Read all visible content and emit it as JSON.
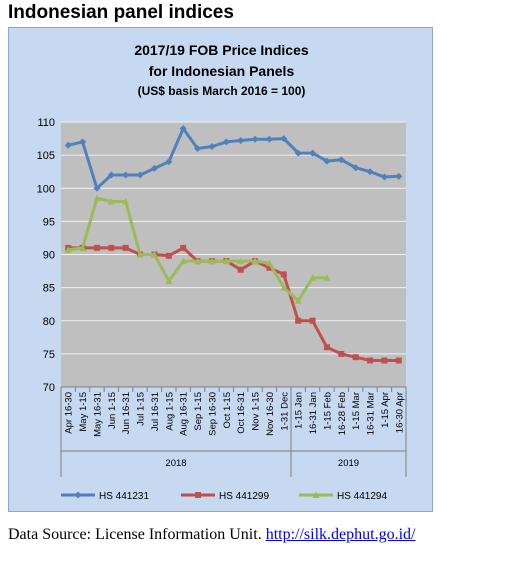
{
  "heading": "Indonesian panel indices",
  "footer": {
    "label": "Data Source: License Information Unit.",
    "link": "http://silk.dephut.go.id/"
  },
  "chart_data": {
    "type": "line",
    "title": "2017/19 FOB Price Indices",
    "subtitle": "for Indonesian Panels",
    "subtitle2": "(US$ basis March 2016 = 100)",
    "x": [
      "Apr 16-30",
      "May 1-15",
      "May 16-31",
      "Jun 1-15",
      "Jun 16-31",
      "Jul 1-15",
      "Jul 16-31",
      "Aug 1-15",
      "Aug 16-31",
      "Sep 1-15",
      "Sep 16-30",
      "Oct 1-15",
      "Oct 16-31",
      "Nov 1-15",
      "Nov 16-30",
      "1-31 Dec",
      "1-15 Jan",
      "16-31 Jan",
      "1-15 Feb",
      "16-28 Feb",
      "1-15 Mar",
      "16-31 Mar",
      "1-15 Apr",
      "16-30 Apr"
    ],
    "year_groups": [
      {
        "label": "2018",
        "start": 0,
        "end": 15
      },
      {
        "label": "2019",
        "start": 16,
        "end": 23
      }
    ],
    "ylim": [
      70,
      110
    ],
    "yticks": [
      70,
      75,
      80,
      85,
      90,
      95,
      100,
      105,
      110
    ],
    "grid": true,
    "legend": "bottom",
    "series": [
      {
        "name": "HS 441231",
        "color": "#4f81bd",
        "values": [
          106.5,
          107,
          100,
          102,
          102,
          102,
          103,
          104,
          109,
          106,
          106.3,
          107,
          107.2,
          107.4,
          107.4,
          107.5,
          105.3,
          105.3,
          104.1,
          104.3,
          103.1,
          102.5,
          101.7,
          101.8
        ]
      },
      {
        "name": "HS 441299",
        "color": "#c0504d",
        "values": [
          91,
          91,
          91,
          91,
          91,
          90,
          90,
          89.8,
          91,
          89,
          89,
          89,
          87.7,
          89,
          88,
          87,
          80,
          80,
          76,
          75,
          74.5,
          74,
          74,
          74
        ]
      },
      {
        "name": "HS 441294",
        "color": "#9bbb59",
        "values": [
          90.7,
          91,
          98.5,
          98,
          98,
          90,
          90,
          86,
          89,
          89,
          89,
          89,
          89,
          89,
          88.7,
          85,
          83,
          86.5,
          86.5,
          null,
          null,
          null,
          null,
          null
        ]
      }
    ]
  }
}
